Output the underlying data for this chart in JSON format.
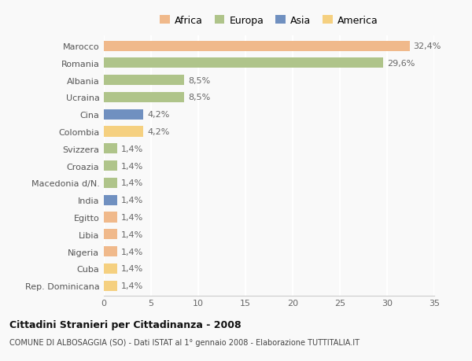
{
  "countries": [
    "Marocco",
    "Romania",
    "Albania",
    "Ucraina",
    "Cina",
    "Colombia",
    "Svizzera",
    "Croazia",
    "Macedonia d/N.",
    "India",
    "Egitto",
    "Libia",
    "Nigeria",
    "Cuba",
    "Rep. Dominicana"
  ],
  "values": [
    32.4,
    29.6,
    8.5,
    8.5,
    4.2,
    4.2,
    1.4,
    1.4,
    1.4,
    1.4,
    1.4,
    1.4,
    1.4,
    1.4,
    1.4
  ],
  "labels": [
    "32,4%",
    "29,6%",
    "8,5%",
    "8,5%",
    "4,2%",
    "4,2%",
    "1,4%",
    "1,4%",
    "1,4%",
    "1,4%",
    "1,4%",
    "1,4%",
    "1,4%",
    "1,4%",
    "1,4%"
  ],
  "colors": [
    "#f0b98b",
    "#afc48a",
    "#afc48a",
    "#afc48a",
    "#7090c0",
    "#f5d080",
    "#afc48a",
    "#afc48a",
    "#afc48a",
    "#7090c0",
    "#f0b98b",
    "#f0b98b",
    "#f0b98b",
    "#f5d080",
    "#f5d080"
  ],
  "legend_labels": [
    "Africa",
    "Europa",
    "Asia",
    "America"
  ],
  "legend_colors": [
    "#f0b98b",
    "#afc48a",
    "#7090c0",
    "#f5d080"
  ],
  "xlim": [
    0,
    35
  ],
  "xticks": [
    0,
    5,
    10,
    15,
    20,
    25,
    30,
    35
  ],
  "title": "Cittadini Stranieri per Cittadinanza - 2008",
  "subtitle": "COMUNE DI ALBOSAGGIA (SO) - Dati ISTAT al 1° gennaio 2008 - Elaborazione TUTTITALIA.IT",
  "bg_color": "#f9f9f9",
  "grid_color": "#e8e8e8",
  "bar_height": 0.6,
  "label_fontsize": 8,
  "tick_fontsize": 8
}
